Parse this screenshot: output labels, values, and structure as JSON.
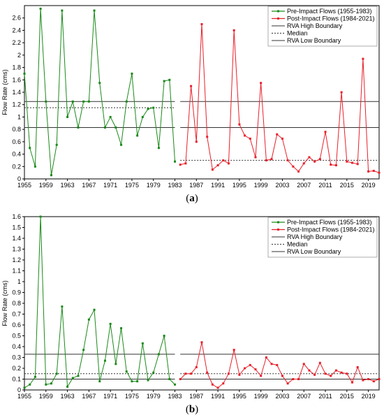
{
  "captions": {
    "a_open": "(",
    "a_letter": "a",
    "a_close": ")",
    "b_open": "(",
    "b_letter": "b",
    "b_close": ")"
  },
  "colors": {
    "pre": "#1a8a1a",
    "post": "#e8202a",
    "ref": "#333333"
  },
  "chart_data": [
    {
      "type": "line",
      "ylabel": "Flow Rate (cms)",
      "xlim": [
        1955,
        2021
      ],
      "ylim": [
        0,
        2.8
      ],
      "yticks": [
        0,
        0.2,
        0.4,
        0.6,
        0.8,
        1,
        1.2,
        1.4,
        1.6,
        1.8,
        2,
        2.2,
        2.4,
        2.6
      ],
      "ytick_labels": [
        "0",
        "0.2",
        "0.4",
        "0.6",
        "0.8",
        "1",
        "1.2",
        "1.4",
        "1.6",
        "1.8",
        "2",
        "2.2",
        "2.4",
        "2.6"
      ],
      "xticks": [
        1955,
        1959,
        1963,
        1967,
        1971,
        1975,
        1979,
        1983,
        1987,
        1991,
        1995,
        1999,
        2003,
        2007,
        2011,
        2015,
        2019
      ],
      "xtick_labels": [
        "1955",
        "1959",
        "1963",
        "1967",
        "1971",
        "1975",
        "1979",
        "1983",
        "1987",
        "1991",
        "1995",
        "1999",
        "2003",
        "2007",
        "2011",
        "2015",
        "2019"
      ],
      "series": [
        {
          "name": "Pre-Impact Flows (1955-1983)",
          "color": "#1a8a1a",
          "x": [
            1955,
            1956,
            1957,
            1958,
            1959,
            1960,
            1961,
            1962,
            1963,
            1964,
            1965,
            1966,
            1967,
            1968,
            1969,
            1970,
            1971,
            1972,
            1973,
            1974,
            1975,
            1976,
            1977,
            1978,
            1979,
            1980,
            1981,
            1982,
            1983
          ],
          "y": [
            1.7,
            0.5,
            0.2,
            2.75,
            1.25,
            0.06,
            0.55,
            2.72,
            1.0,
            1.25,
            0.83,
            1.25,
            1.25,
            2.72,
            1.55,
            0.83,
            1.0,
            0.83,
            0.55,
            1.25,
            1.7,
            0.7,
            1.0,
            1.13,
            1.15,
            0.5,
            1.58,
            1.6,
            0.28
          ]
        },
        {
          "name": "Post-Impact Flows (1984-2021)",
          "color": "#e8202a",
          "x": [
            1984,
            1985,
            1986,
            1987,
            1988,
            1989,
            1990,
            1991,
            1992,
            1993,
            1994,
            1995,
            1996,
            1997,
            1998,
            1999,
            2000,
            2001,
            2002,
            2003,
            2004,
            2005,
            2006,
            2007,
            2008,
            2009,
            2010,
            2011,
            2012,
            2013,
            2014,
            2015,
            2016,
            2017,
            2018,
            2019,
            2020,
            2021
          ],
          "y": [
            0.23,
            0.25,
            1.5,
            0.6,
            2.5,
            0.68,
            0.15,
            0.22,
            0.3,
            0.25,
            2.4,
            0.88,
            0.7,
            0.65,
            0.35,
            1.55,
            0.3,
            0.32,
            0.72,
            0.65,
            0.3,
            0.2,
            0.12,
            0.25,
            0.35,
            0.28,
            0.32,
            0.76,
            0.23,
            0.22,
            1.4,
            0.28,
            0.26,
            0.24,
            1.94,
            0.12,
            0.13,
            0.1
          ]
        }
      ],
      "reference_lines": [
        {
          "name": "RVA High Boundary",
          "style": "solid",
          "pre": 1.25,
          "post": 1.25
        },
        {
          "name": "Median",
          "style": "dotted",
          "pre": 1.15,
          "post": 0.3
        },
        {
          "name": "RVA Low Boundary",
          "style": "solid",
          "pre": 0.83,
          "post": 0.83
        }
      ],
      "legend_position": "top-right"
    },
    {
      "type": "line",
      "ylabel": "Flow Rate (cms)",
      "xlim": [
        1955,
        2021
      ],
      "ylim": [
        0,
        1.6
      ],
      "yticks": [
        0,
        0.1,
        0.2,
        0.3,
        0.4,
        0.5,
        0.6,
        0.7,
        0.8,
        0.9,
        1,
        1.1,
        1.2,
        1.3,
        1.4,
        1.5,
        1.6
      ],
      "ytick_labels": [
        "0",
        "0.1",
        "0.2",
        "0.3",
        "0.4",
        "0.5",
        "0.6",
        "0.7",
        "0.8",
        "0.9",
        "1",
        "1.1",
        "1.2",
        "1.3",
        "1.4",
        "1.5",
        "1.6"
      ],
      "xticks": [
        1955,
        1959,
        1963,
        1967,
        1971,
        1975,
        1979,
        1983,
        1987,
        1991,
        1995,
        1999,
        2003,
        2007,
        2011,
        2015,
        2019
      ],
      "xtick_labels": [
        "1955",
        "1959",
        "1963",
        "1967",
        "1971",
        "1975",
        "1979",
        "1983",
        "1987",
        "1991",
        "1995",
        "1999",
        "2003",
        "2007",
        "2011",
        "2015",
        "2019"
      ],
      "series": [
        {
          "name": "Pre-Impact Flows (1955-1983)",
          "color": "#1a8a1a",
          "x": [
            1955,
            1956,
            1957,
            1958,
            1959,
            1960,
            1961,
            1962,
            1963,
            1964,
            1965,
            1966,
            1967,
            1968,
            1969,
            1970,
            1971,
            1972,
            1973,
            1974,
            1975,
            1976,
            1977,
            1978,
            1979,
            1980,
            1981,
            1982,
            1983
          ],
          "y": [
            0.02,
            0.05,
            0.12,
            1.6,
            0.05,
            0.06,
            0.15,
            0.77,
            0.03,
            0.11,
            0.13,
            0.37,
            0.65,
            0.74,
            0.08,
            0.27,
            0.61,
            0.24,
            0.57,
            0.17,
            0.08,
            0.08,
            0.43,
            0.09,
            0.16,
            0.33,
            0.5,
            0.1,
            0.05
          ]
        },
        {
          "name": "Post-Impact Flows (1984-2021)",
          "color": "#e8202a",
          "x": [
            1984,
            1985,
            1986,
            1987,
            1988,
            1989,
            1990,
            1991,
            1992,
            1993,
            1994,
            1995,
            1996,
            1997,
            1998,
            1999,
            2000,
            2001,
            2002,
            2003,
            2004,
            2005,
            2006,
            2007,
            2008,
            2009,
            2010,
            2011,
            2012,
            2013,
            2014,
            2015,
            2016,
            2017,
            2018,
            2019,
            2020,
            2021
          ],
          "y": [
            0.1,
            0.15,
            0.15,
            0.21,
            0.44,
            0.16,
            0.05,
            0.02,
            0.06,
            0.15,
            0.37,
            0.14,
            0.2,
            0.23,
            0.19,
            0.13,
            0.3,
            0.24,
            0.23,
            0.13,
            0.06,
            0.1,
            0.1,
            0.24,
            0.18,
            0.14,
            0.25,
            0.15,
            0.13,
            0.18,
            0.16,
            0.15,
            0.07,
            0.21,
            0.09,
            0.1,
            0.08,
            0.1
          ]
        }
      ],
      "reference_lines": [
        {
          "name": "RVA High Boundary",
          "style": "solid",
          "pre": 0.33,
          "post": 0.33
        },
        {
          "name": "Median",
          "style": "dotted",
          "pre": 0.15,
          "post": 0.15
        },
        {
          "name": "RVA Low Boundary",
          "style": "solid",
          "pre": 0.1,
          "post": 0.1
        }
      ],
      "legend_position": "top-right"
    }
  ]
}
